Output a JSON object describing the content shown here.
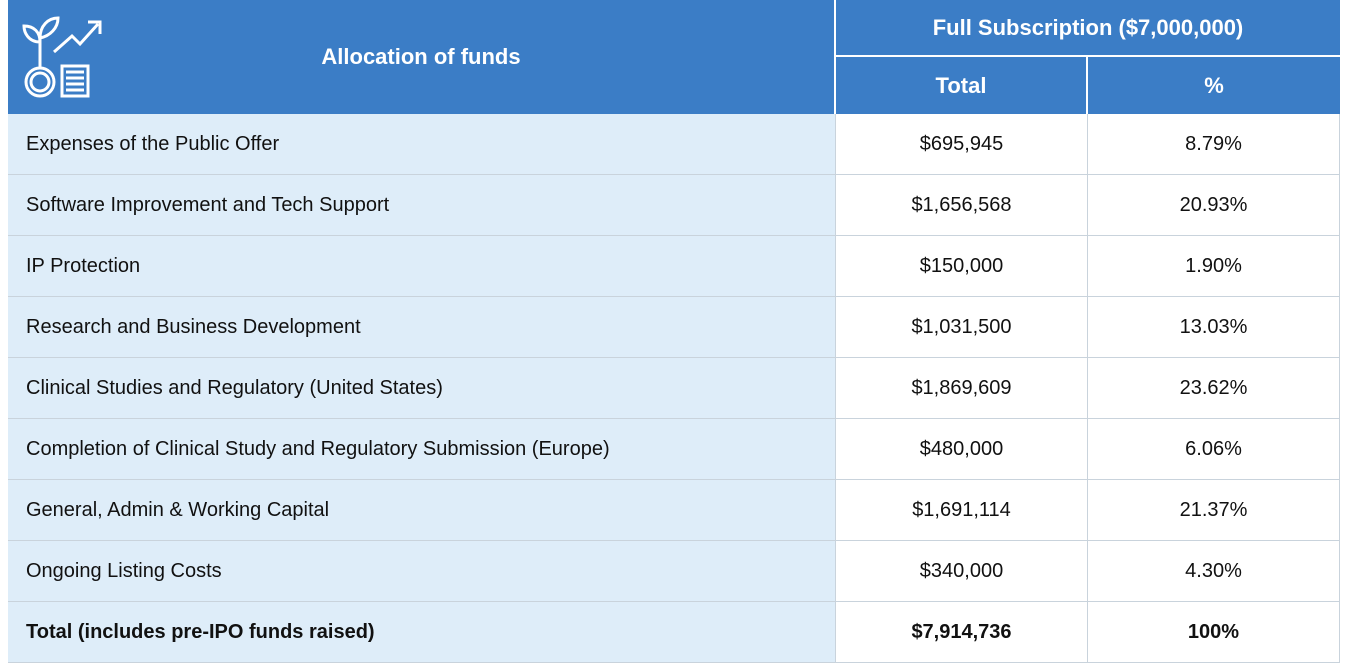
{
  "header": {
    "title": "Allocation of funds",
    "group": "Full Subscription ($7,000,000)",
    "columns": [
      "Total",
      "%"
    ]
  },
  "table": {
    "rows": [
      [
        "Expenses of the Public Offer",
        "$695,945",
        "8.79%"
      ],
      [
        "Software Improvement and Tech Support",
        "$1,656,568",
        "20.93%"
      ],
      [
        "IP Protection",
        "$150,000",
        "1.90%"
      ],
      [
        "Research and Business Development",
        "$1,031,500",
        "13.03%"
      ],
      [
        "Clinical Studies and Regulatory (United States)",
        "$1,869,609",
        "23.62%"
      ],
      [
        "Completion of Clinical Study and Regulatory Submission (Europe)",
        "$480,000",
        "6.06%"
      ],
      [
        "General, Admin & Working Capital",
        "$1,691,114",
        "21.37%"
      ],
      [
        "Ongoing Listing Costs",
        "$340,000",
        "4.30%"
      ]
    ],
    "total_row": [
      "Total (includes pre-IPO funds raised)",
      "$7,914,736",
      "100%"
    ]
  }
}
